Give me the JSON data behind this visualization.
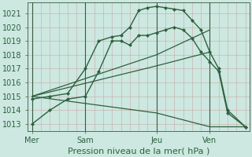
{
  "xlabel": "Pression niveau de la mer( hPa )",
  "bg_color": "#cce8e0",
  "grid_color": "#c8a8a8",
  "line_color": "#2d6040",
  "ylim": [
    1012.5,
    1021.8
  ],
  "yticks": [
    1013,
    1014,
    1015,
    1016,
    1017,
    1018,
    1019,
    1020,
    1021
  ],
  "day_labels": [
    "Mer",
    "Sam",
    "Jeu",
    "Ven"
  ],
  "day_positions": [
    0,
    24,
    56,
    80
  ],
  "series_with_markers": [
    {
      "x": [
        0,
        8,
        16,
        24,
        30,
        36,
        40,
        44,
        48,
        52,
        56,
        60,
        64,
        68,
        72,
        76,
        80,
        84,
        88,
        96
      ],
      "y": [
        1013.0,
        1014.0,
        1014.8,
        1015.0,
        1016.8,
        1019.0,
        1019.0,
        1018.7,
        1019.4,
        1019.4,
        1019.6,
        1019.8,
        1020.0,
        1019.8,
        1019.2,
        1018.2,
        1017.5,
        1016.8,
        1013.8,
        1012.8
      ]
    },
    {
      "x": [
        0,
        8,
        16,
        24,
        30,
        36,
        40,
        44,
        48,
        52,
        56,
        60,
        64,
        68,
        72,
        76,
        80,
        84,
        88,
        96
      ],
      "y": [
        1014.8,
        1015.0,
        1015.2,
        1017.0,
        1019.0,
        1019.3,
        1019.4,
        1020.0,
        1021.2,
        1021.4,
        1021.5,
        1021.4,
        1021.3,
        1021.2,
        1020.5,
        1019.8,
        1018.2,
        1017.0,
        1014.0,
        1012.8
      ]
    }
  ],
  "series_fan": [
    {
      "x": [
        0,
        56,
        80
      ],
      "y": [
        1015.0,
        1018.0,
        1019.8
      ]
    },
    {
      "x": [
        0,
        56,
        80
      ],
      "y": [
        1015.0,
        1017.2,
        1018.2
      ]
    },
    {
      "x": [
        0,
        56,
        80,
        96
      ],
      "y": [
        1015.0,
        1013.8,
        1012.8,
        1012.8
      ]
    }
  ],
  "vline_positions": [
    0,
    24,
    56,
    80
  ],
  "vline_color": "#3a5a40",
  "xlabel_fontsize": 8,
  "tick_fontsize": 7,
  "tick_color": "#2d6040",
  "xlim": [
    -2,
    98
  ],
  "markersize": 2.5,
  "linewidth": 1.0,
  "fan_linewidth": 0.9
}
